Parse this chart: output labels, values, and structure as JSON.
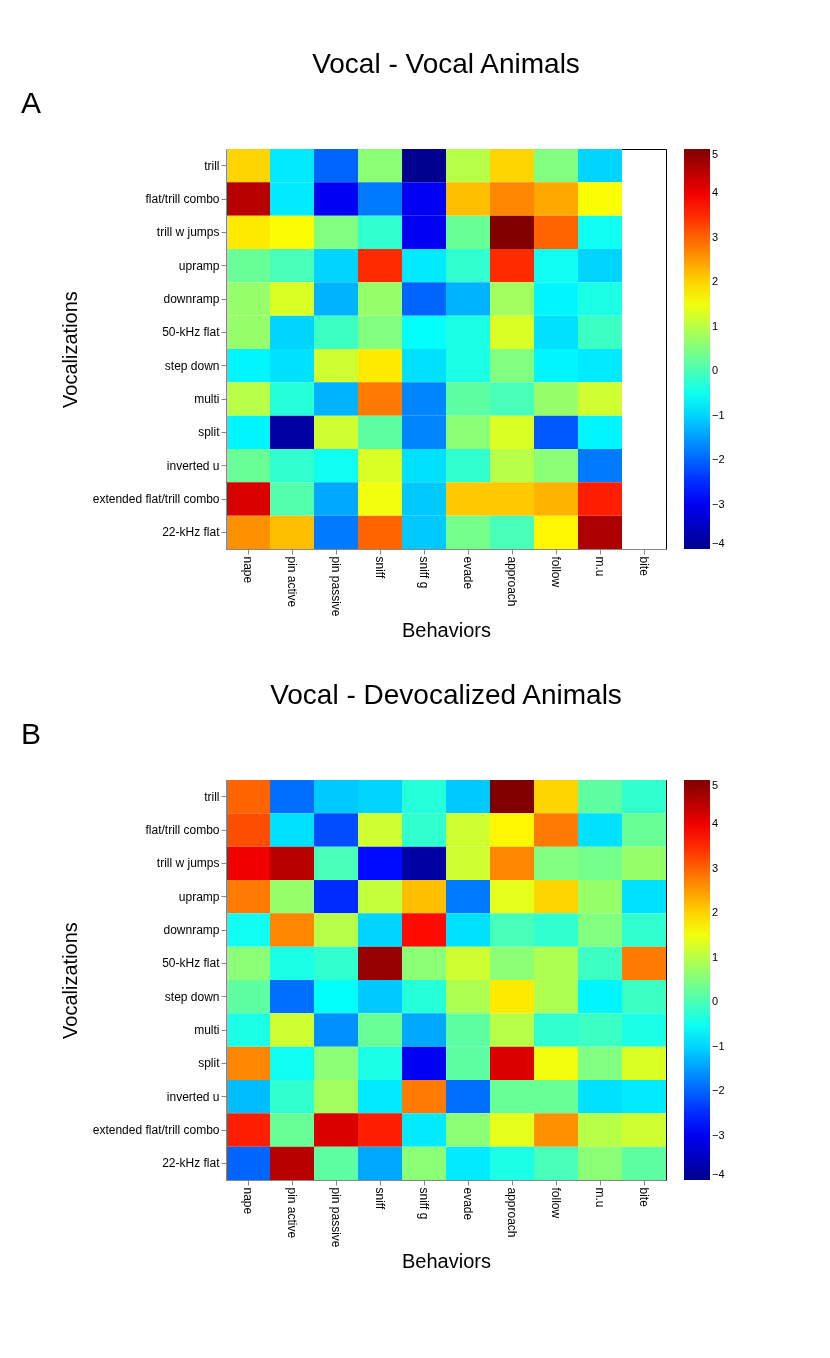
{
  "chart_data": [
    {
      "type": "heatmap",
      "title": "Vocal - Vocal Animals",
      "xlabel": "Behaviors",
      "ylabel": "Vocalizations",
      "annotations": [
        "A"
      ],
      "categories": [
        "nape",
        "pin active",
        "pin passive",
        "sniff",
        "sniff g",
        "evade",
        "approach",
        "follow",
        "m.u",
        "bite"
      ],
      "y_categories": [
        "trill",
        "flat/trill combo",
        "trill w jumps",
        "upramp",
        "downramp",
        "50-kHz flat",
        "step down",
        "multi",
        "split",
        "inverted u",
        "extended flat/trill combo",
        "22-kHz flat"
      ],
      "cells": [
        [
          2,
          -0.8,
          -2,
          0.6,
          -4,
          1,
          2,
          0.5,
          -1,
          null
        ],
        [
          4.5,
          -0.8,
          -3,
          -1.8,
          -3,
          2.2,
          2.7,
          2.4,
          1.6,
          null
        ],
        [
          1.8,
          1.6,
          0.5,
          -0.2,
          -3,
          0.3,
          5,
          3,
          -0.5,
          null
        ],
        [
          0.3,
          0,
          -1,
          3.5,
          -0.8,
          -0.2,
          3.5,
          -0.5,
          -1,
          null
        ],
        [
          0.7,
          1.3,
          -1.3,
          0.7,
          -2,
          -1.3,
          0.8,
          -0.7,
          -0.4,
          null
        ],
        [
          0.7,
          -1,
          -0.1,
          0.5,
          -0.6,
          -0.4,
          1.3,
          -0.9,
          -0.1,
          null
        ],
        [
          -0.7,
          -0.9,
          1.2,
          1.8,
          -0.9,
          -0.4,
          0.5,
          -0.7,
          -0.8,
          null
        ],
        [
          1,
          -0.3,
          -1.3,
          2.8,
          -1.7,
          0.2,
          0,
          0.7,
          1.2,
          null
        ],
        [
          -0.7,
          -3.8,
          1.2,
          0.2,
          -1.7,
          0.6,
          1.3,
          -2.1,
          -0.7,
          null
        ],
        [
          0.3,
          -0.2,
          -0.5,
          1.3,
          -0.9,
          -0.2,
          1,
          0.6,
          -1.8,
          null
        ],
        [
          4.2,
          0.1,
          -1.4,
          1.5,
          -1.1,
          2.1,
          2.1,
          2.3,
          3.6,
          null
        ],
        [
          2.6,
          2.2,
          -1.8,
          3,
          -1.1,
          0.4,
          0,
          1.7,
          4.6,
          null
        ]
      ],
      "clim": [
        -4,
        5
      ],
      "cticks": [
        -4,
        -3,
        -2,
        -1,
        0,
        1,
        2,
        3,
        4,
        5
      ]
    },
    {
      "type": "heatmap",
      "title": "Vocal - Devocalized Animals",
      "xlabel": "Behaviors",
      "ylabel": "Vocalizations",
      "annotations": [
        "B"
      ],
      "categories": [
        "nape",
        "pin active",
        "pin passive",
        "sniff",
        "sniff g",
        "evade",
        "approach",
        "follow",
        "m.u",
        "bite"
      ],
      "y_categories": [
        "trill",
        "flat/trill combo",
        "trill w jumps",
        "upramp",
        "downramp",
        "50-kHz flat",
        "step down",
        "multi",
        "split",
        "inverted u",
        "extended flat/trill combo",
        "22-kHz flat"
      ],
      "cells": [
        [
          3,
          -1.9,
          -1.1,
          -1,
          -0.3,
          -1.1,
          5,
          2,
          0.2,
          -0.2
        ],
        [
          3.2,
          -0.9,
          -2.2,
          1.2,
          -0.2,
          1.2,
          1.7,
          2.8,
          -0.9,
          0.3
        ],
        [
          4,
          4.5,
          0,
          -2.8,
          -3.8,
          1.2,
          2.7,
          0.5,
          0.4,
          0.7
        ],
        [
          2.8,
          0.7,
          -2.5,
          1.1,
          2.2,
          -1.8,
          1.4,
          2,
          0.7,
          -0.9
        ],
        [
          -0.5,
          2.7,
          1,
          -1,
          3.8,
          -0.9,
          0,
          -0.2,
          0.5,
          -0.2
        ],
        [
          0.6,
          -0.4,
          -0.2,
          4.8,
          0.6,
          1.2,
          0.6,
          0.9,
          -0.1,
          2.8
        ],
        [
          0.2,
          -1.9,
          -0.6,
          -1.1,
          -0.3,
          0.9,
          1.8,
          0.9,
          -0.7,
          -0.1
        ],
        [
          -0.4,
          1.2,
          -1.6,
          0.3,
          -1.4,
          0.2,
          1,
          -0.2,
          -0.1,
          -0.4
        ],
        [
          2.7,
          -0.5,
          0.6,
          -0.4,
          -3,
          0.2,
          4.2,
          1.5,
          0.5,
          1.3
        ],
        [
          -1.2,
          -0.2,
          0.8,
          -0.8,
          2.8,
          -1.9,
          0.3,
          0.3,
          -0.9,
          -0.8
        ],
        [
          3.6,
          0.3,
          4.2,
          3.6,
          -0.8,
          0.6,
          1.4,
          2.6,
          1,
          1.2
        ],
        [
          -2,
          4.5,
          0.2,
          -1.4,
          0.6,
          -0.8,
          -0.4,
          0,
          0.6,
          0.2
        ]
      ],
      "clim": [
        -4,
        5
      ],
      "cticks": [
        -4,
        -3,
        -2,
        -1,
        0,
        1,
        2,
        3,
        4,
        5
      ]
    }
  ]
}
